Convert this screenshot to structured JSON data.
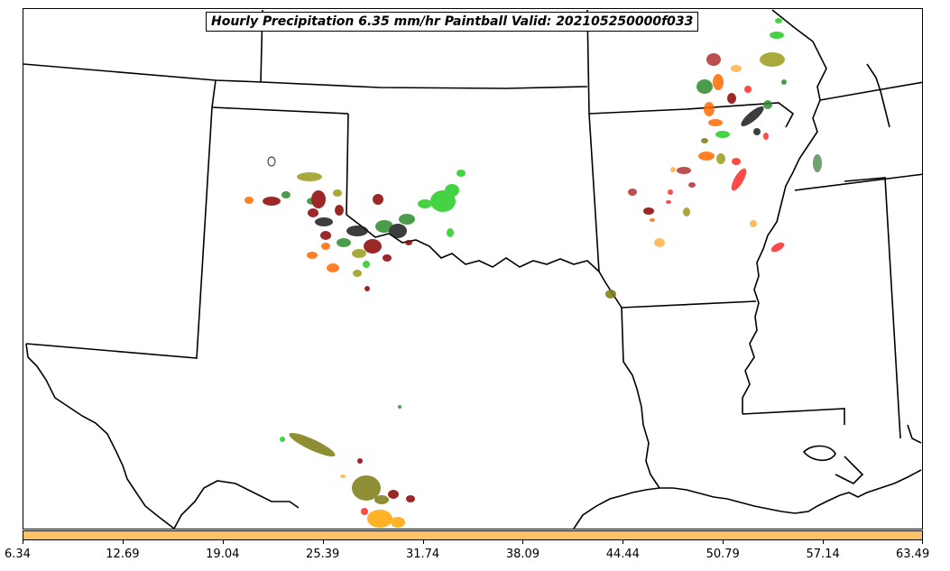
{
  "title": "Hourly Precipitation 6.35 mm/hr Paintball Valid: 202105250000f033",
  "colorbar": {
    "color": "#ffc266",
    "ticks": [
      "6.34",
      "12.69",
      "19.04",
      "25.39",
      "31.74",
      "38.09",
      "44.44",
      "50.79",
      "57.14",
      "63.49"
    ]
  },
  "colors": {
    "boundary": "#000000",
    "member_colors": [
      "#8b0000",
      "#1a1a1a",
      "#2e8b2e",
      "#22cc22",
      "#9a9a1a",
      "#7a7a10",
      "#ff6a00",
      "#ffb347",
      "#ff2a2a",
      "#ffa500",
      "#5a8f5a",
      "#b03030"
    ]
  }
}
